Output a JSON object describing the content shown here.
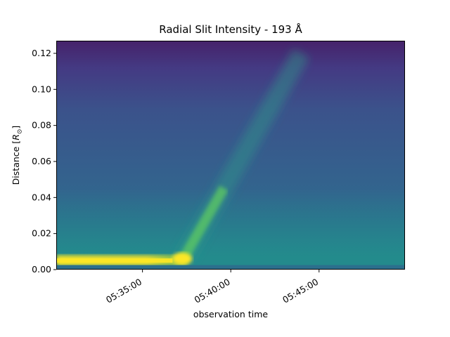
{
  "chart_data": {
    "type": "heatmap",
    "title": "Radial Slit Intensity - 193 Å",
    "xlabel": "observation time",
    "ylabel": "Distance [R⊙]",
    "colormap": "viridis",
    "grid": false,
    "xlim": [
      "05:30:07",
      "05:49:52"
    ],
    "ylim": [
      0.0,
      0.127
    ],
    "x_ticks": [
      "05:35:00",
      "05:40:00",
      "05:45:00"
    ],
    "y_ticks": [
      "0.00",
      "0.02",
      "0.04",
      "0.06",
      "0.08",
      "0.10",
      "0.12"
    ],
    "features": {
      "bright_band": {
        "distance": 0.005,
        "from": "05:30:07",
        "to": "05:37:30"
      },
      "bright_spot": {
        "time": "05:37:15",
        "distance": 0.006
      },
      "ejecta_front": {
        "start_time": "05:37:15",
        "start_distance": 0.005,
        "end_time": "05:44:00",
        "end_distance": 0.12
      }
    }
  }
}
